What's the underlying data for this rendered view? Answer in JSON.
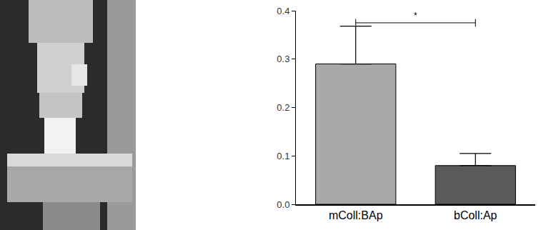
{
  "chart_data": {
    "type": "bar",
    "categories": [
      "mColl:BAp",
      "bColl:Ap"
    ],
    "values": [
      0.29,
      0.08
    ],
    "error": [
      0.078,
      0.025
    ],
    "colors": [
      "#a9a9a9",
      "#5a5a5a"
    ],
    "ylim": [
      0,
      0.4
    ],
    "yticks": [
      {
        "value": 0,
        "label": "0.0"
      },
      0.1,
      0.2,
      0.3,
      0.4
    ],
    "grid": false,
    "annotations": [
      {
        "text": "*",
        "from": "mColl:BAp",
        "to": "bColl:Ap",
        "y": 0.375
      }
    ]
  }
}
